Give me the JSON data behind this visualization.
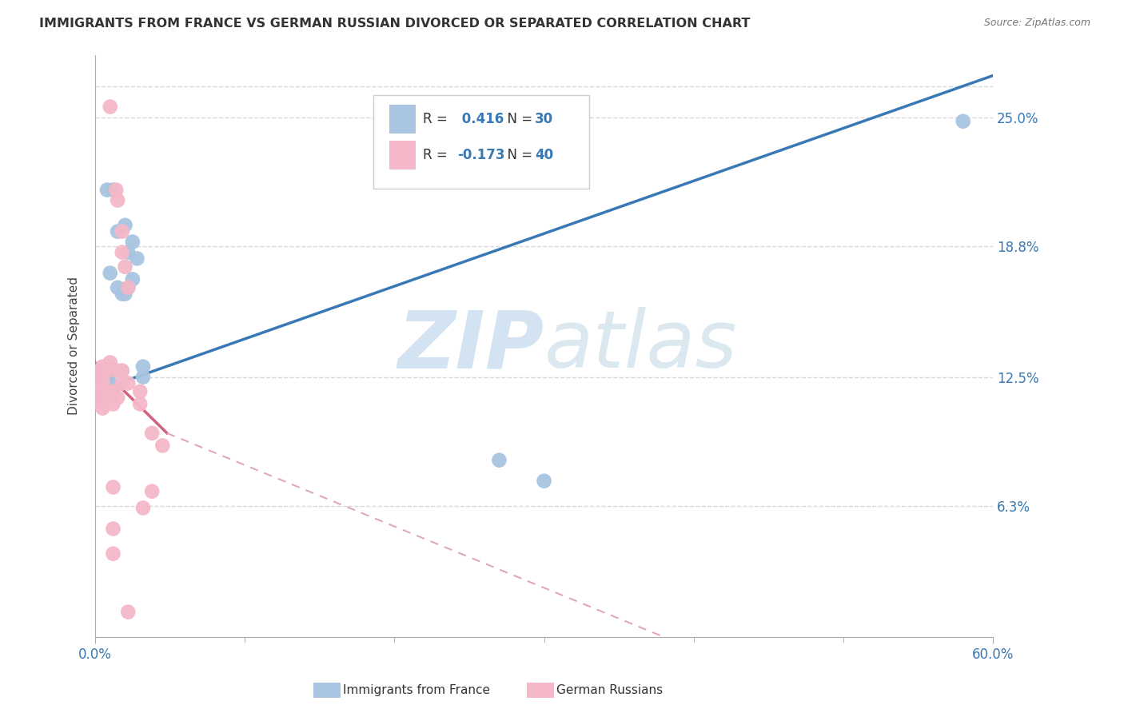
{
  "title": "IMMIGRANTS FROM FRANCE VS GERMAN RUSSIAN DIVORCED OR SEPARATED CORRELATION CHART",
  "source": "Source: ZipAtlas.com",
  "ylabel": "Divorced or Separated",
  "xlim": [
    0.0,
    0.6
  ],
  "ylim": [
    0.0,
    0.28
  ],
  "blue_r": 0.416,
  "blue_n": 30,
  "pink_r": -0.173,
  "pink_n": 40,
  "blue_color": "#a8c4e0",
  "pink_color": "#f4b8c8",
  "blue_line_color": "#3878b4",
  "pink_line_color": "#d46080",
  "pink_line_dashed_color": "#e0a8b8",
  "watermark_zip": "ZIP",
  "watermark_atlas": "atlas",
  "blue_dots": [
    [
      0.012,
      0.215
    ],
    [
      0.008,
      0.215
    ],
    [
      0.01,
      0.175
    ],
    [
      0.015,
      0.195
    ],
    [
      0.02,
      0.198
    ],
    [
      0.022,
      0.185
    ],
    [
      0.025,
      0.19
    ],
    [
      0.028,
      0.182
    ],
    [
      0.025,
      0.172
    ],
    [
      0.022,
      0.168
    ],
    [
      0.02,
      0.165
    ],
    [
      0.018,
      0.165
    ],
    [
      0.015,
      0.168
    ],
    [
      0.005,
      0.128
    ],
    [
      0.005,
      0.122
    ],
    [
      0.003,
      0.128
    ],
    [
      0.003,
      0.122
    ],
    [
      0.003,
      0.12
    ],
    [
      0.003,
      0.118
    ],
    [
      0.003,
      0.115
    ],
    [
      0.008,
      0.118
    ],
    [
      0.01,
      0.122
    ],
    [
      0.012,
      0.128
    ],
    [
      0.012,
      0.12
    ],
    [
      0.032,
      0.13
    ],
    [
      0.032,
      0.125
    ],
    [
      0.018,
      0.128
    ],
    [
      0.27,
      0.085
    ],
    [
      0.3,
      0.075
    ],
    [
      0.58,
      0.248
    ]
  ],
  "pink_dots": [
    [
      0.01,
      0.255
    ],
    [
      0.014,
      0.215
    ],
    [
      0.015,
      0.21
    ],
    [
      0.018,
      0.195
    ],
    [
      0.018,
      0.185
    ],
    [
      0.02,
      0.178
    ],
    [
      0.022,
      0.168
    ],
    [
      0.01,
      0.132
    ],
    [
      0.008,
      0.13
    ],
    [
      0.008,
      0.128
    ],
    [
      0.005,
      0.13
    ],
    [
      0.005,
      0.128
    ],
    [
      0.005,
      0.125
    ],
    [
      0.005,
      0.122
    ],
    [
      0.005,
      0.12
    ],
    [
      0.005,
      0.118
    ],
    [
      0.005,
      0.115
    ],
    [
      0.005,
      0.112
    ],
    [
      0.005,
      0.11
    ],
    [
      0.008,
      0.118
    ],
    [
      0.008,
      0.115
    ],
    [
      0.01,
      0.118
    ],
    [
      0.01,
      0.115
    ],
    [
      0.012,
      0.118
    ],
    [
      0.012,
      0.112
    ],
    [
      0.015,
      0.128
    ],
    [
      0.015,
      0.115
    ],
    [
      0.018,
      0.128
    ],
    [
      0.018,
      0.122
    ],
    [
      0.022,
      0.122
    ],
    [
      0.03,
      0.118
    ],
    [
      0.03,
      0.112
    ],
    [
      0.038,
      0.098
    ],
    [
      0.045,
      0.092
    ],
    [
      0.038,
      0.07
    ],
    [
      0.012,
      0.072
    ],
    [
      0.012,
      0.052
    ],
    [
      0.012,
      0.04
    ],
    [
      0.032,
      0.062
    ],
    [
      0.022,
      0.012
    ]
  ],
  "blue_line": [
    [
      0.0,
      0.118
    ],
    [
      0.6,
      0.27
    ]
  ],
  "pink_line_solid": [
    [
      0.0,
      0.132
    ],
    [
      0.048,
      0.098
    ]
  ],
  "pink_line_dashed": [
    [
      0.048,
      0.098
    ],
    [
      0.6,
      -0.065
    ]
  ],
  "ytick_vals": [
    0.063,
    0.125,
    0.188,
    0.25
  ],
  "ytick_labels": [
    "6.3%",
    "12.5%",
    "18.8%",
    "25.0%"
  ],
  "xtick_major": [
    0.0,
    0.6
  ],
  "xtick_major_labels": [
    "0.0%",
    "60.0%"
  ],
  "xtick_minor": [
    0.1,
    0.2,
    0.3,
    0.4,
    0.5
  ],
  "background_color": "#ffffff",
  "grid_color": "#d8d8d8",
  "legend_all_blue": true
}
